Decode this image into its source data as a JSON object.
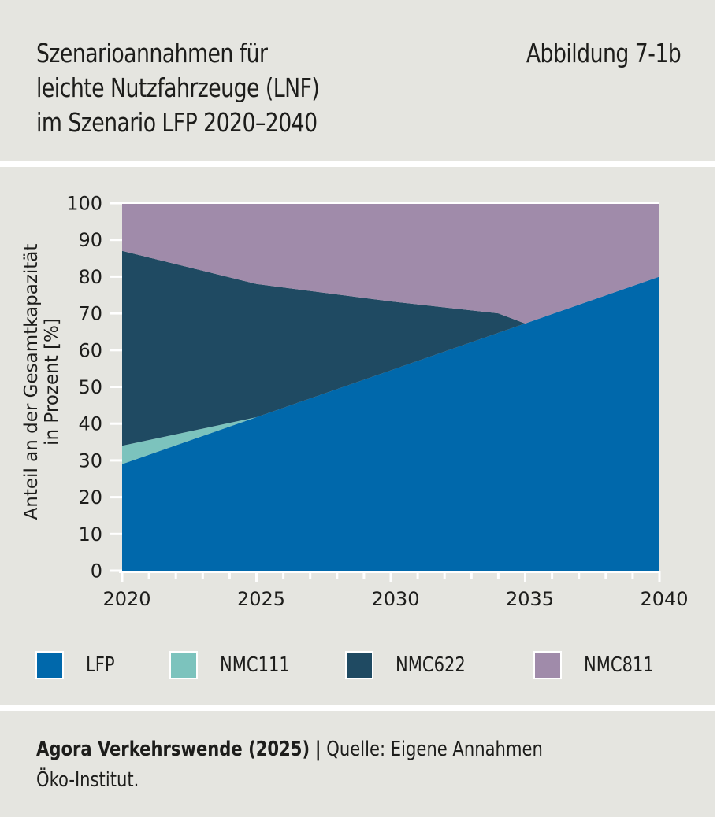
{
  "header": {
    "title_lines": [
      "Szenarioannahmen für",
      "leichte Nutzfahrzeuge (LNF)",
      "im Szenario LFP 2020–2040"
    ],
    "figure_number": "Abbildung 7-1b"
  },
  "chart_data": {
    "type": "area",
    "stacked": true,
    "title": "Szenarioannahmen für leichte Nutzfahrzeuge (LNF) im Szenario LFP 2020–2040",
    "xlabel": "",
    "ylabel_lines": [
      "Anteil an der Gesamtkapazität",
      "in Prozent [%]"
    ],
    "x": [
      2020,
      2025,
      2030,
      2034,
      2035,
      2040
    ],
    "xlim": [
      2020,
      2040
    ],
    "ylim": [
      0,
      100
    ],
    "xticks": [
      2020,
      2025,
      2030,
      2035,
      2040
    ],
    "xtick_labels": [
      "2020",
      "2025",
      "2030",
      "2035",
      "2040"
    ],
    "xminor_step": 1,
    "yticks": [
      0,
      10,
      20,
      30,
      40,
      50,
      60,
      70,
      80,
      90,
      100
    ],
    "ytick_labels": [
      "0",
      "10",
      "20",
      "30",
      "40",
      "50",
      "60",
      "70",
      "80",
      "90",
      "100"
    ],
    "grid": false,
    "legend_position": "bottom",
    "series": [
      {
        "name": "LFP",
        "color": "#0068ab",
        "values": [
          29,
          41.75,
          54.5,
          64.7,
          67.25,
          80
        ]
      },
      {
        "name": "NMC111",
        "color": "#7cc3bd",
        "values": [
          5,
          0,
          0,
          0,
          0,
          0
        ]
      },
      {
        "name": "NMC622",
        "color": "#1f4a62",
        "values": [
          53,
          36.25,
          18.75,
          5.3,
          0,
          0
        ]
      },
      {
        "name": "NMC811",
        "color": "#a08baa",
        "values": [
          13,
          22,
          26.75,
          30,
          32.75,
          20
        ]
      }
    ]
  },
  "legend": [
    {
      "label": "LFP",
      "color": "#0068ab"
    },
    {
      "label": "NMC111",
      "color": "#7cc3bd"
    },
    {
      "label": "NMC622",
      "color": "#1f4a62"
    },
    {
      "label": "NMC811",
      "color": "#a08baa"
    }
  ],
  "footer": {
    "publisher": "Agora Verkehrswende (2025)",
    "separator": "|",
    "source_line1": "Quelle: Eigene Annahmen",
    "source_line2": "Öko-Institut."
  }
}
